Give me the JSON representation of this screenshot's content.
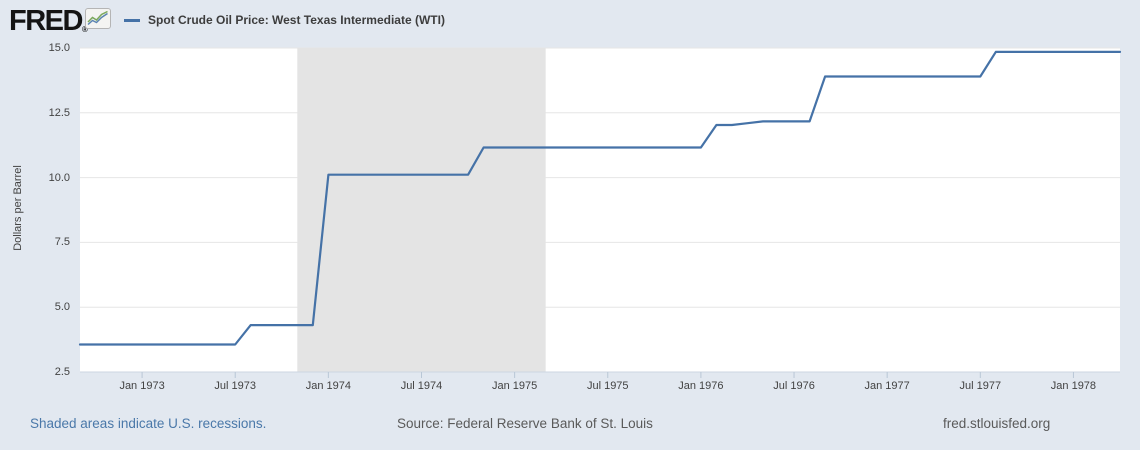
{
  "header": {
    "logo": "FRED",
    "logo_registered": "®",
    "legend_label": "Spot Crude Oil Price: West Texas Intermediate (WTI)"
  },
  "footer": {
    "recession_note": "Shaded areas indicate U.S. recessions.",
    "source": "Source: Federal Reserve Bank of St. Louis",
    "site": "fred.stlouisfed.org"
  },
  "colors": {
    "background": "#e2e8f0",
    "plot_bg": "#ffffff",
    "recession_band": "#e4e4e4",
    "gridline": "#e6e6e6",
    "axis_line": "#ccd6e2",
    "tick": "#b9c7d6",
    "line": "#4572a7",
    "logo_text": "#141414",
    "title_text": "#3d3d3d",
    "axis_text": "#424242",
    "link_blue": "#4a78a9",
    "footer_gray": "#5a5a5a",
    "logo_icon_green": "#7aa85c",
    "logo_icon_blue": "#5b84b1"
  },
  "chart_data": {
    "type": "line",
    "title": "Spot Crude Oil Price: West Texas Intermediate (WTI)",
    "ylabel": "Dollars per Barrel",
    "xlabel": "",
    "ylim": [
      2.5,
      15.0
    ],
    "grid": "horizontal",
    "legend_position": "top-left",
    "frequency": "monthly",
    "start_month": "1972-09",
    "end_month": "1978-04",
    "y_ticks": [
      {
        "label": "15.0",
        "value": 15.0
      },
      {
        "label": "12.5",
        "value": 12.5
      },
      {
        "label": "10.0",
        "value": 10.0
      },
      {
        "label": "7.5",
        "value": 7.5
      },
      {
        "label": "5.0",
        "value": 5.0
      },
      {
        "label": "2.5",
        "value": 2.5
      }
    ],
    "x_ticks": [
      {
        "label": "Jan 1973",
        "month": "1973-01"
      },
      {
        "label": "Jul 1973",
        "month": "1973-07"
      },
      {
        "label": "Jan 1974",
        "month": "1974-01"
      },
      {
        "label": "Jul 1974",
        "month": "1974-07"
      },
      {
        "label": "Jan 1975",
        "month": "1975-01"
      },
      {
        "label": "Jul 1975",
        "month": "1975-07"
      },
      {
        "label": "Jan 1976",
        "month": "1976-01"
      },
      {
        "label": "Jul 1976",
        "month": "1976-07"
      },
      {
        "label": "Jan 1977",
        "month": "1977-01"
      },
      {
        "label": "Jul 1977",
        "month": "1977-07"
      },
      {
        "label": "Jan 1978",
        "month": "1978-01"
      }
    ],
    "series": [
      {
        "name": "Spot Crude Oil Price: West Texas Intermediate (WTI)",
        "units": "Dollars per Barrel",
        "values": [
          3.56,
          3.56,
          3.56,
          3.56,
          3.56,
          3.56,
          3.56,
          3.56,
          3.56,
          3.56,
          3.56,
          4.31,
          4.31,
          4.31,
          4.31,
          4.31,
          10.11,
          10.11,
          10.11,
          10.11,
          10.11,
          10.11,
          10.11,
          10.11,
          10.11,
          10.11,
          11.16,
          11.16,
          11.16,
          11.16,
          11.16,
          11.16,
          11.16,
          11.16,
          11.16,
          11.16,
          11.16,
          11.16,
          11.16,
          11.16,
          11.16,
          12.03,
          12.03,
          12.1,
          12.17,
          12.17,
          12.17,
          12.17,
          13.9,
          13.9,
          13.9,
          13.9,
          13.9,
          13.9,
          13.9,
          13.9,
          13.9,
          13.9,
          13.9,
          14.85,
          14.85,
          14.85,
          14.85,
          14.85,
          14.85,
          14.85,
          14.85,
          14.85
        ]
      }
    ],
    "recessions": [
      {
        "start": "1973-11",
        "end": "1975-03"
      }
    ]
  }
}
